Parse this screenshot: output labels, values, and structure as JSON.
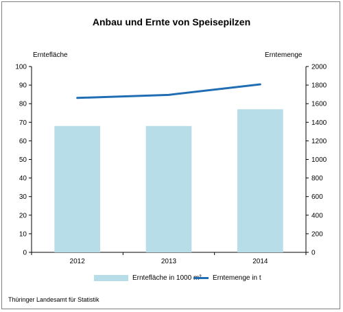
{
  "colors": {
    "bar": "#b7dde8",
    "line": "#1f6eb4"
  },
  "chart_data": {
    "type": "bar",
    "title": "Anbau und Ernte von Speisepilzen",
    "categories": [
      "2012",
      "2013",
      "2014"
    ],
    "series": [
      {
        "name": "Erntefläche in 1000 m²",
        "type": "bar",
        "axis": "left",
        "values": [
          68,
          68,
          77
        ]
      },
      {
        "name": "Erntemenge in t",
        "type": "line",
        "axis": "right",
        "values": [
          1662,
          1695,
          1808
        ]
      }
    ],
    "ylabel": "Erntefläche",
    "y2label": "Erntemenge",
    "ylim": [
      0,
      100
    ],
    "y2lim": [
      0,
      2000
    ],
    "yticks": [
      "0",
      "10",
      "20",
      "30",
      "40",
      "50",
      "60",
      "70",
      "80",
      "90",
      "100"
    ],
    "y2ticks": [
      "0",
      "200",
      "400",
      "600",
      "800",
      "1000",
      "1200",
      "1400",
      "1600",
      "1800",
      "2000"
    ],
    "grid": false,
    "legend": "bottom"
  },
  "source": "Thüringer Landesamt für Statistik"
}
